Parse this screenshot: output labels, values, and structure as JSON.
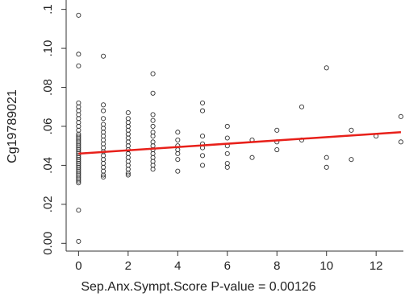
{
  "chart_data": {
    "type": "scatter",
    "xlabel": "Sep.Anx.Sympt.Score P-value = 0.00126",
    "ylabel": "Cg19789021",
    "xlim": [
      -0.5,
      13.1
    ],
    "ylim": [
      -0.004,
      0.1248
    ],
    "xticks": [
      0,
      2,
      4,
      6,
      8,
      10,
      12
    ],
    "yticks": [
      {
        "value": 0,
        "label": "0.00"
      },
      {
        "value": 0.02,
        "label": ".02"
      },
      {
        "value": 0.04,
        "label": ".04"
      },
      {
        "value": 0.06,
        "label": ".06"
      },
      {
        "value": 0.08,
        "label": ".08"
      },
      {
        "value": 0.1,
        "label": ".10"
      },
      {
        "value": 0.12,
        "label": ".1"
      }
    ],
    "points": {
      "color": "#333333",
      "x": [
        0,
        0,
        0,
        0,
        0,
        0,
        0,
        0,
        0,
        0,
        0,
        0,
        0,
        0,
        0,
        0,
        0,
        0,
        0,
        0,
        0,
        0,
        0,
        0,
        0,
        0,
        0,
        0,
        0,
        0,
        0,
        0,
        0,
        0,
        0,
        0,
        0,
        0,
        0,
        1,
        1,
        1,
        1,
        1,
        1,
        1,
        1,
        1,
        1,
        1,
        1,
        1,
        1,
        1,
        1,
        1,
        1,
        1,
        2,
        2,
        2,
        2,
        2,
        2,
        2,
        2,
        2,
        2,
        2,
        2,
        2,
        2,
        2,
        2,
        2,
        3,
        3,
        3,
        3,
        3,
        3,
        3,
        3,
        3,
        3,
        3,
        3,
        3,
        3,
        3,
        4,
        4,
        4,
        4,
        4,
        4,
        4,
        5,
        5,
        5,
        5,
        5,
        5,
        5,
        6,
        6,
        6,
        6,
        6,
        6,
        7,
        7,
        8,
        8,
        8,
        9,
        9,
        10,
        10,
        10,
        11,
        11,
        12,
        13,
        13
      ],
      "y": [
        0.117,
        0.097,
        0.091,
        0.072,
        0.07,
        0.068,
        0.066,
        0.064,
        0.062,
        0.06,
        0.058,
        0.056,
        0.055,
        0.054,
        0.053,
        0.052,
        0.051,
        0.05,
        0.049,
        0.048,
        0.047,
        0.046,
        0.045,
        0.044,
        0.043,
        0.042,
        0.041,
        0.04,
        0.039,
        0.038,
        0.037,
        0.036,
        0.035,
        0.034,
        0.033,
        0.032,
        0.031,
        0.017,
        0.001,
        0.096,
        0.071,
        0.068,
        0.064,
        0.061,
        0.059,
        0.057,
        0.055,
        0.053,
        0.051,
        0.049,
        0.047,
        0.045,
        0.043,
        0.041,
        0.039,
        0.037,
        0.035,
        0.034,
        0.067,
        0.064,
        0.062,
        0.06,
        0.058,
        0.056,
        0.054,
        0.052,
        0.05,
        0.048,
        0.046,
        0.044,
        0.042,
        0.04,
        0.038,
        0.036,
        0.035,
        0.087,
        0.077,
        0.066,
        0.063,
        0.06,
        0.057,
        0.055,
        0.052,
        0.05,
        0.048,
        0.046,
        0.044,
        0.042,
        0.04,
        0.038,
        0.057,
        0.053,
        0.05,
        0.048,
        0.046,
        0.043,
        0.037,
        0.072,
        0.068,
        0.055,
        0.051,
        0.049,
        0.045,
        0.04,
        0.06,
        0.054,
        0.05,
        0.046,
        0.041,
        0.039,
        0.053,
        0.044,
        0.058,
        0.052,
        0.048,
        0.07,
        0.053,
        0.09,
        0.044,
        0.039,
        0.058,
        0.043,
        0.055,
        0.065,
        0.052
      ]
    },
    "fit": {
      "color": "#e8201a",
      "x": [
        0,
        13
      ],
      "y": [
        0.046,
        0.057
      ]
    }
  }
}
